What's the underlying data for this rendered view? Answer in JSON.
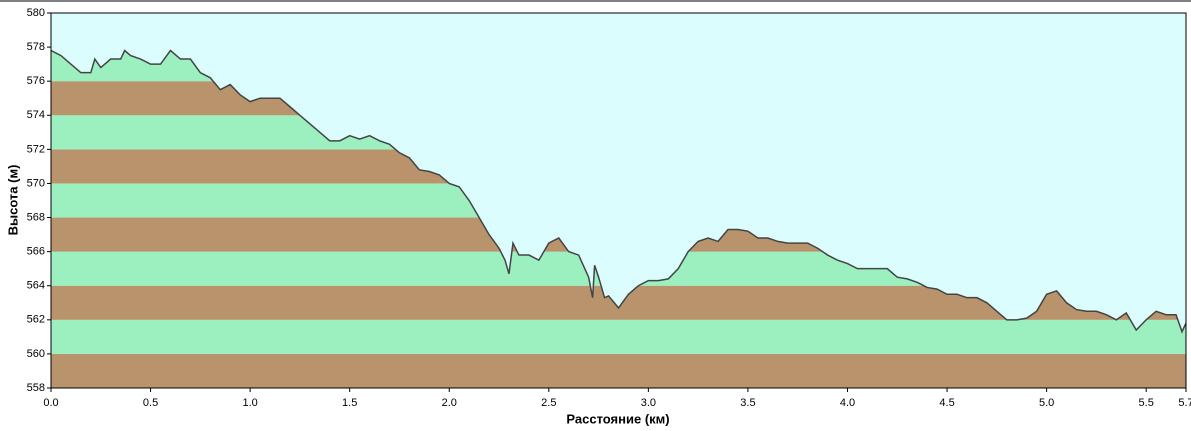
{
  "chart_data": {
    "type": "elevation-profile",
    "x_label": "Расстояние  (км)",
    "y_label": "Высота (м)",
    "xlim": [
      0,
      5.7
    ],
    "ylim": [
      558,
      580
    ],
    "xticks": [
      {
        "value": 0,
        "label": "0.0"
      },
      0.5,
      {
        "value": 1,
        "label": "1.0"
      },
      1.5,
      {
        "value": 2,
        "label": "2.0"
      },
      2.5,
      {
        "value": 3,
        "label": "3.0"
      },
      3.5,
      {
        "value": 4,
        "label": "4.0"
      },
      4.5,
      {
        "value": 5,
        "label": "5.0"
      },
      5.5,
      5.7
    ],
    "yticks": [
      558,
      560,
      562,
      564,
      566,
      568,
      570,
      572,
      574,
      576,
      578,
      580
    ],
    "band_colors": [
      "#b9936b",
      "#9cf0c0"
    ],
    "background": "#dcfdfd",
    "line_color": "#444444",
    "x": [
      0,
      0.05,
      0.1,
      0.15,
      0.2,
      0.22,
      0.25,
      0.3,
      0.35,
      0.37,
      0.4,
      0.45,
      0.5,
      0.55,
      0.6,
      0.65,
      0.7,
      0.75,
      0.8,
      0.85,
      0.9,
      0.95,
      1.0,
      1.05,
      1.1,
      1.15,
      1.2,
      1.25,
      1.3,
      1.35,
      1.4,
      1.45,
      1.5,
      1.55,
      1.6,
      1.65,
      1.7,
      1.75,
      1.8,
      1.85,
      1.9,
      1.95,
      2.0,
      2.05,
      2.1,
      2.15,
      2.2,
      2.25,
      2.28,
      2.3,
      2.32,
      2.35,
      2.4,
      2.45,
      2.5,
      2.55,
      2.6,
      2.65,
      2.7,
      2.72,
      2.73,
      2.75,
      2.78,
      2.8,
      2.85,
      2.9,
      2.95,
      3.0,
      3.05,
      3.1,
      3.15,
      3.2,
      3.25,
      3.3,
      3.35,
      3.4,
      3.45,
      3.5,
      3.55,
      3.6,
      3.65,
      3.7,
      3.75,
      3.8,
      3.85,
      3.9,
      3.95,
      4.0,
      4.05,
      4.1,
      4.15,
      4.2,
      4.25,
      4.3,
      4.35,
      4.4,
      4.45,
      4.5,
      4.55,
      4.6,
      4.65,
      4.7,
      4.75,
      4.8,
      4.85,
      4.9,
      4.95,
      5.0,
      5.05,
      5.1,
      5.15,
      5.2,
      5.25,
      5.3,
      5.35,
      5.4,
      5.45,
      5.5,
      5.55,
      5.6,
      5.65,
      5.68,
      5.7
    ],
    "values": [
      577.8,
      577.5,
      577,
      576.5,
      576.5,
      577.3,
      576.8,
      577.3,
      577.3,
      577.8,
      577.5,
      577.3,
      577,
      577,
      577.8,
      577.3,
      577.3,
      576.5,
      576.2,
      575.5,
      575.8,
      575.2,
      574.8,
      575,
      575,
      575,
      574.5,
      574,
      573.5,
      573,
      572.5,
      572.5,
      572.8,
      572.6,
      572.8,
      572.5,
      572.3,
      571.8,
      571.5,
      570.8,
      570.7,
      570.5,
      570,
      569.8,
      569,
      568,
      567,
      566.2,
      565.5,
      564.7,
      566.5,
      565.8,
      565.8,
      565.5,
      566.5,
      566.8,
      566,
      565.8,
      564.5,
      563.3,
      565.2,
      564.5,
      563.3,
      563.4,
      562.7,
      563.5,
      564,
      564.3,
      564.3,
      564.4,
      565,
      566,
      566.6,
      566.8,
      566.6,
      567.3,
      567.3,
      567.2,
      566.8,
      566.8,
      566.6,
      566.5,
      566.5,
      566.5,
      566.2,
      565.8,
      565.5,
      565.3,
      565,
      565,
      565,
      565,
      564.5,
      564.4,
      564.2,
      563.9,
      563.8,
      563.5,
      563.5,
      563.3,
      563.3,
      563,
      562.5,
      562,
      562,
      562.1,
      562.5,
      563.5,
      563.7,
      563,
      562.6,
      562.5,
      562.5,
      562.3,
      562,
      562.4,
      561.4,
      562,
      562.5,
      562.3,
      562.3,
      561.3,
      561.8
    ]
  }
}
